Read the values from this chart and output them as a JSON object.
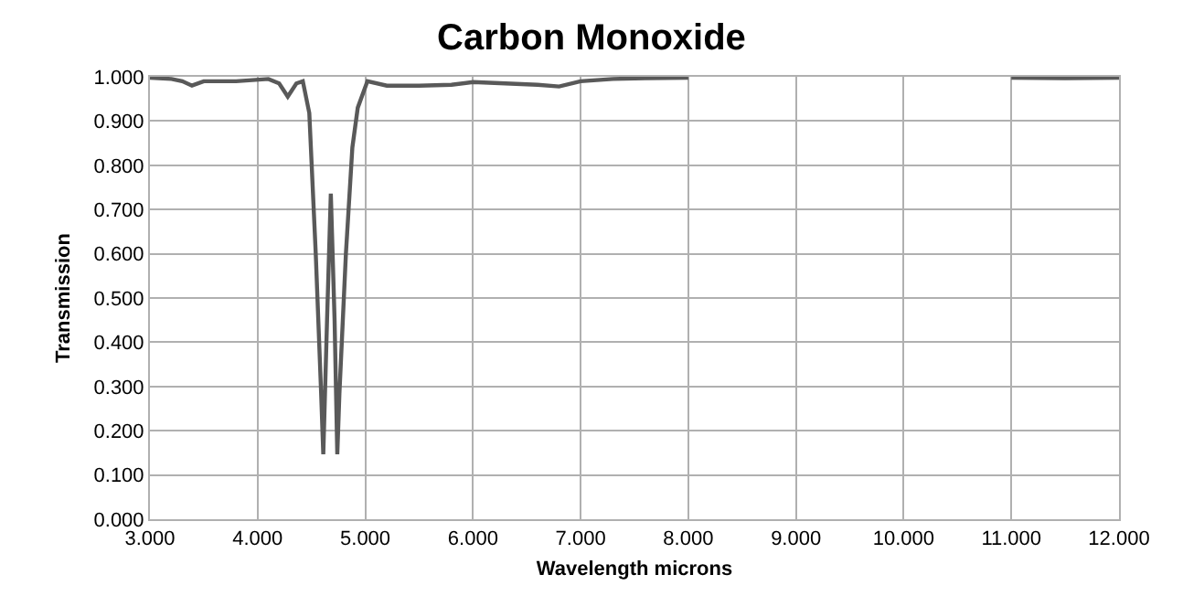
{
  "chart_data": {
    "type": "line",
    "title": "Carbon Monoxide",
    "xlabel": "Wavelength microns",
    "ylabel": "Transmission",
    "x": [
      3.0,
      3.2,
      3.3,
      3.39,
      3.5,
      3.8,
      4.1,
      4.2,
      4.28,
      4.36,
      4.42,
      4.48,
      4.54,
      4.59,
      4.61,
      4.645,
      4.68,
      4.715,
      4.74,
      4.76,
      4.82,
      4.88,
      4.93,
      5.02,
      5.2,
      5.5,
      5.8,
      6.0,
      6.3,
      6.6,
      6.8,
      7.0,
      7.3,
      7.6,
      8.0,
      8.01,
      10.99,
      11.0,
      11.5,
      12.0
    ],
    "series": [
      {
        "color": "#595959",
        "values": [
          0.998,
          0.995,
          0.99,
          0.98,
          0.99,
          0.99,
          0.995,
          0.985,
          0.955,
          0.985,
          0.99,
          0.918,
          0.6,
          0.285,
          0.147,
          0.45,
          0.736,
          0.45,
          0.147,
          0.285,
          0.6,
          0.84,
          0.93,
          0.99,
          0.98,
          0.98,
          0.982,
          0.988,
          0.985,
          0.982,
          0.978,
          0.99,
          0.995,
          0.997,
          0.998,
          null,
          null,
          0.998,
          0.997,
          0.998
        ]
      }
    ],
    "xlim": [
      3.0,
      12.0
    ],
    "ylim": [
      0.0,
      1.0
    ],
    "xticks": [
      {
        "value": 3,
        "label": "3.000"
      },
      {
        "value": 4,
        "label": "4.000"
      },
      {
        "value": 5,
        "label": "5.000"
      },
      {
        "value": 6,
        "label": "6.000"
      },
      {
        "value": 7,
        "label": "7.000"
      },
      {
        "value": 8,
        "label": "8.000"
      },
      {
        "value": 9,
        "label": "9.000"
      },
      {
        "value": 10,
        "label": "10.000"
      },
      {
        "value": 11,
        "label": "11.000"
      },
      {
        "value": 12,
        "label": "12.000"
      }
    ],
    "yticks": [
      {
        "value": 0,
        "label": "0.000"
      },
      {
        "value": 0.1,
        "label": "0.100"
      },
      {
        "value": 0.2,
        "label": "0.200"
      },
      {
        "value": 0.3,
        "label": "0.300"
      },
      {
        "value": 0.4,
        "label": "0.400"
      },
      {
        "value": 0.5,
        "label": "0.500"
      },
      {
        "value": 0.6,
        "label": "0.600"
      },
      {
        "value": 0.7,
        "label": "0.700"
      },
      {
        "value": 0.8,
        "label": "0.800"
      },
      {
        "value": 0.9,
        "label": "0.900"
      },
      {
        "value": 1.0,
        "label": "1.000"
      }
    ],
    "grid": true,
    "marker": "none",
    "line_style": "solid"
  }
}
